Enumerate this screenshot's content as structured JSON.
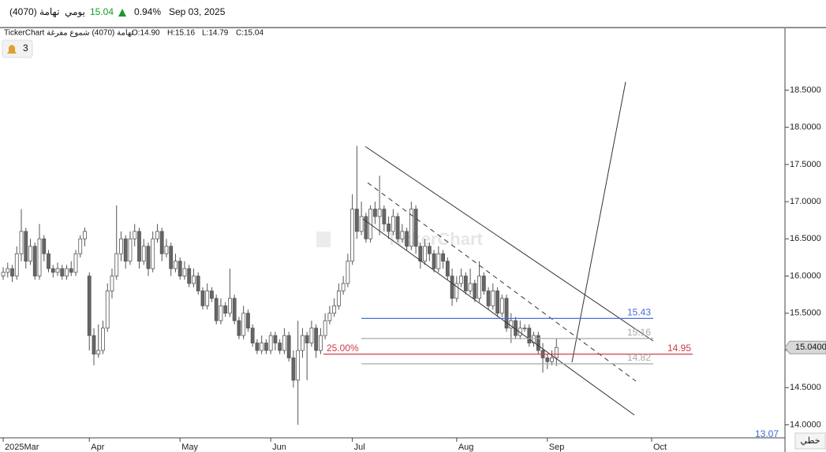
{
  "header": {
    "symbol": "تهامة (4070)",
    "period": "يومي",
    "price": "15.04",
    "change": "0.94%",
    "date": "Sep 03, 2025"
  },
  "info": {
    "source": "TickerChart تهامة (4070) شموع مفرغة",
    "ohlc": [
      "O:14.90",
      "H:15.16",
      "L:14.79",
      "C:15.04"
    ]
  },
  "alerts": "3",
  "watermark": "TickerChart",
  "chart_type_button": "خطي",
  "corner_value": "13.07",
  "chart_data": {
    "type": "candlestick",
    "ylim": [
      13.825,
      19.33
    ],
    "yticks": [
      {
        "value": 14,
        "label": "14.0000"
      },
      {
        "value": 14.5,
        "label": "14.5000"
      },
      {
        "value": 15,
        "label": "15.0000"
      },
      {
        "value": 15.5,
        "label": "15.5000"
      },
      {
        "value": 16,
        "label": "16.0000"
      },
      {
        "value": 16.5,
        "label": "16.5000"
      },
      {
        "value": 17,
        "label": "17.0000"
      },
      {
        "value": 17.5,
        "label": "17.5000"
      },
      {
        "value": 18,
        "label": "18.0000"
      },
      {
        "value": 18.5,
        "label": "18.5000"
      }
    ],
    "xlim": [
      -0.7,
      172.4
    ],
    "xticks": [
      {
        "value": 0,
        "label": "2025Mar"
      },
      {
        "value": 19,
        "label": "Apr"
      },
      {
        "value": 39,
        "label": "May"
      },
      {
        "value": 59,
        "label": "Jun"
      },
      {
        "value": 77,
        "label": "Jul"
      },
      {
        "value": 100,
        "label": "Aug"
      },
      {
        "value": 120,
        "label": "Sep"
      },
      {
        "value": 143,
        "label": "Oct"
      }
    ],
    "last_price": {
      "value": 15.04,
      "label": "15.0400"
    },
    "levels": [
      {
        "value": 15.43,
        "label": "15.43",
        "color": "#4a6fd8"
      },
      {
        "value": 15.16,
        "label": "15.16",
        "color": "#a9a9a9"
      },
      {
        "value": 14.95,
        "label": "14.95",
        "color": "#d03a4a",
        "note": "25.00%"
      },
      {
        "value": 14.82,
        "label": "14.82",
        "color": "#a9a9a9"
      }
    ],
    "candles": [
      [
        16.0,
        16.12,
        15.95,
        16.05
      ],
      [
        16.05,
        16.18,
        15.98,
        16.1
      ],
      [
        16.1,
        16.15,
        15.92,
        16.0
      ],
      [
        16.0,
        16.4,
        15.95,
        16.3
      ],
      [
        16.3,
        16.9,
        16.2,
        16.6
      ],
      [
        16.6,
        16.65,
        16.1,
        16.2
      ],
      [
        16.2,
        16.5,
        16.15,
        16.4
      ],
      [
        16.4,
        16.45,
        15.95,
        16.0
      ],
      [
        16.0,
        16.7,
        15.95,
        16.5
      ],
      [
        16.5,
        16.55,
        16.2,
        16.3
      ],
      [
        16.3,
        16.35,
        16.05,
        16.1
      ],
      [
        16.1,
        16.15,
        15.98,
        16.05
      ],
      [
        16.05,
        16.18,
        16.0,
        16.1
      ],
      [
        16.1,
        16.15,
        15.95,
        16.0
      ],
      [
        16.0,
        16.15,
        15.95,
        16.1
      ],
      [
        16.1,
        16.2,
        16.0,
        16.05
      ],
      [
        16.05,
        16.35,
        16.0,
        16.3
      ],
      [
        16.3,
        16.55,
        16.25,
        16.5
      ],
      [
        16.5,
        16.65,
        16.4,
        16.6
      ],
      [
        16.0,
        16.05,
        15.0,
        15.2
      ],
      [
        15.2,
        15.3,
        14.8,
        14.95
      ],
      [
        14.95,
        15.35,
        14.9,
        15.0
      ],
      [
        15.0,
        15.4,
        14.95,
        15.3
      ],
      [
        15.3,
        15.9,
        15.25,
        15.8
      ],
      [
        15.8,
        16.1,
        15.7,
        16.0
      ],
      [
        16.0,
        16.95,
        15.95,
        16.3
      ],
      [
        16.3,
        16.6,
        16.2,
        16.5
      ],
      [
        16.5,
        16.55,
        16.1,
        16.2
      ],
      [
        16.2,
        16.6,
        16.15,
        16.5
      ],
      [
        16.5,
        16.7,
        16.4,
        16.6
      ],
      [
        16.6,
        16.65,
        16.1,
        16.2
      ],
      [
        16.2,
        16.5,
        16.15,
        16.4
      ],
      [
        16.4,
        16.45,
        16.0,
        16.1
      ],
      [
        16.1,
        16.6,
        16.05,
        16.5
      ],
      [
        16.5,
        16.7,
        16.45,
        16.6
      ],
      [
        16.6,
        16.65,
        16.2,
        16.3
      ],
      [
        16.3,
        16.5,
        16.25,
        16.4
      ],
      [
        16.4,
        16.45,
        16.0,
        16.1
      ],
      [
        16.1,
        16.3,
        16.05,
        16.2
      ],
      [
        16.2,
        16.25,
        15.95,
        16.0
      ],
      [
        16.0,
        16.2,
        15.95,
        16.1
      ],
      [
        16.1,
        16.15,
        15.85,
        15.9
      ],
      [
        15.9,
        16.1,
        15.85,
        16.0
      ],
      [
        16.0,
        16.05,
        15.75,
        15.8
      ],
      [
        15.8,
        15.85,
        15.55,
        15.6
      ],
      [
        15.6,
        15.9,
        15.55,
        15.8
      ],
      [
        15.8,
        15.85,
        15.65,
        15.7
      ],
      [
        15.7,
        15.75,
        15.35,
        15.4
      ],
      [
        15.4,
        15.7,
        15.35,
        15.6
      ],
      [
        15.6,
        15.65,
        15.45,
        15.5
      ],
      [
        15.5,
        16.1,
        15.45,
        15.7
      ],
      [
        15.7,
        15.75,
        15.35,
        15.4
      ],
      [
        15.4,
        15.45,
        15.15,
        15.2
      ],
      [
        15.2,
        15.6,
        15.15,
        15.5
      ],
      [
        15.5,
        15.55,
        15.25,
        15.3
      ],
      [
        15.3,
        15.35,
        15.05,
        15.1
      ],
      [
        15.1,
        15.15,
        14.95,
        15.0
      ],
      [
        15.0,
        15.2,
        14.95,
        15.1
      ],
      [
        15.1,
        15.15,
        14.95,
        15.0
      ],
      [
        15.0,
        15.25,
        14.95,
        15.2
      ],
      [
        15.2,
        15.25,
        15.0,
        15.1
      ],
      [
        15.1,
        15.15,
        14.95,
        15.0
      ],
      [
        15.0,
        15.3,
        14.95,
        15.2
      ],
      [
        15.2,
        15.25,
        14.85,
        14.9
      ],
      [
        14.9,
        15.0,
        14.5,
        14.6
      ],
      [
        14.6,
        15.4,
        14.0,
        15.0
      ],
      [
        15.0,
        15.3,
        14.9,
        15.2
      ],
      [
        15.2,
        15.25,
        14.6,
        15.1
      ],
      [
        15.1,
        15.4,
        15.05,
        15.3
      ],
      [
        15.3,
        15.35,
        14.9,
        15.0
      ],
      [
        15.0,
        15.3,
        14.95,
        15.2
      ],
      [
        15.2,
        15.5,
        15.15,
        15.4
      ],
      [
        15.4,
        15.6,
        15.35,
        15.5
      ],
      [
        15.5,
        15.7,
        15.45,
        15.6
      ],
      [
        15.6,
        15.9,
        15.55,
        15.8
      ],
      [
        15.8,
        16.0,
        15.75,
        15.9
      ],
      [
        15.9,
        16.3,
        15.85,
        16.2
      ],
      [
        16.2,
        17.1,
        16.15,
        16.9
      ],
      [
        16.9,
        17.75,
        16.5,
        16.6
      ],
      [
        16.6,
        17.0,
        16.55,
        16.8
      ],
      [
        16.8,
        16.85,
        16.45,
        16.5
      ],
      [
        16.5,
        16.95,
        16.45,
        16.9
      ],
      [
        16.9,
        17.0,
        16.7,
        16.8
      ],
      [
        16.8,
        17.35,
        16.55,
        16.9
      ],
      [
        16.9,
        16.95,
        16.6,
        16.7
      ],
      [
        16.7,
        16.8,
        16.5,
        16.6
      ],
      [
        16.6,
        16.9,
        16.55,
        16.8
      ],
      [
        16.8,
        16.85,
        16.45,
        16.5
      ],
      [
        16.5,
        16.7,
        16.45,
        16.6
      ],
      [
        16.6,
        16.65,
        16.35,
        16.4
      ],
      [
        16.4,
        17.0,
        16.35,
        16.9
      ],
      [
        16.9,
        16.95,
        16.3,
        16.4
      ],
      [
        16.4,
        16.45,
        16.1,
        16.2
      ],
      [
        16.2,
        16.5,
        16.15,
        16.4
      ],
      [
        16.4,
        16.45,
        16.2,
        16.3
      ],
      [
        16.3,
        16.35,
        16.05,
        16.1
      ],
      [
        16.1,
        16.4,
        16.05,
        16.3
      ],
      [
        16.3,
        16.35,
        16.1,
        16.2
      ],
      [
        16.2,
        16.25,
        15.95,
        16.0
      ],
      [
        16.0,
        16.1,
        15.6,
        15.7
      ],
      [
        15.7,
        16.0,
        15.65,
        15.9
      ],
      [
        15.9,
        16.1,
        15.85,
        16.0
      ],
      [
        16.0,
        16.05,
        15.75,
        15.8
      ],
      [
        15.8,
        16.1,
        15.75,
        15.9
      ],
      [
        15.9,
        15.95,
        15.65,
        15.7
      ],
      [
        15.7,
        16.2,
        15.65,
        16.0
      ],
      [
        16.0,
        16.05,
        15.75,
        15.8
      ],
      [
        15.8,
        15.85,
        15.55,
        15.6
      ],
      [
        15.6,
        15.9,
        15.55,
        15.8
      ],
      [
        15.8,
        15.85,
        15.45,
        15.5
      ],
      [
        15.5,
        15.75,
        15.45,
        15.7
      ],
      [
        15.7,
        15.75,
        15.25,
        15.3
      ],
      [
        15.3,
        15.5,
        15.1,
        15.4
      ],
      [
        15.4,
        15.45,
        15.15,
        15.2
      ],
      [
        15.2,
        15.4,
        15.15,
        15.3
      ],
      [
        15.3,
        15.35,
        15.25,
        15.3
      ],
      [
        15.3,
        15.35,
        15.05,
        15.1
      ],
      [
        15.1,
        15.25,
        15.05,
        15.2
      ],
      [
        15.2,
        15.25,
        14.95,
        15.0
      ],
      [
        15.0,
        15.1,
        14.7,
        14.9
      ],
      [
        14.9,
        14.95,
        14.75,
        14.85
      ],
      [
        14.85,
        15.0,
        14.8,
        14.9
      ],
      [
        14.9,
        15.16,
        14.79,
        15.04
      ]
    ]
  }
}
